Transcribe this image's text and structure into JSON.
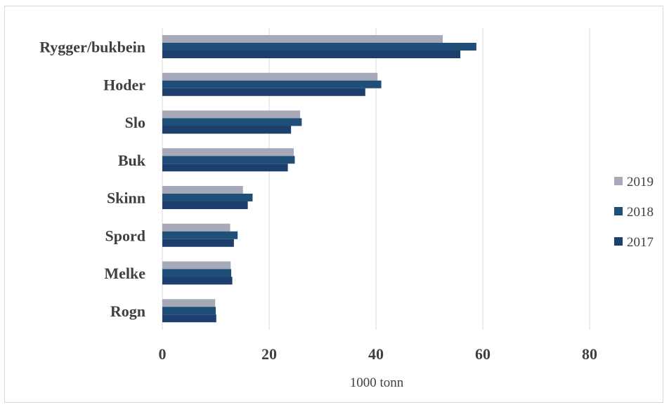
{
  "chart_data": {
    "type": "bar",
    "orientation": "horizontal",
    "categories": [
      "Rygger/bukbein",
      "Hoder",
      "Slo",
      "Buk",
      "Skinn",
      "Spord",
      "Melke",
      "Rogn"
    ],
    "series": [
      {
        "name": "2019",
        "color": "#a5a9b8",
        "values": [
          52.5,
          40.3,
          25.8,
          24.6,
          15.1,
          12.7,
          12.8,
          9.9
        ]
      },
      {
        "name": "2018",
        "color": "#1f4e79",
        "values": [
          58.8,
          41.0,
          26.1,
          24.8,
          16.9,
          14.1,
          12.9,
          10.0
        ]
      },
      {
        "name": "2017",
        "color": "#1c3f6e",
        "values": [
          55.8,
          38.0,
          24.1,
          23.5,
          16.0,
          13.4,
          13.1,
          10.1
        ]
      }
    ],
    "xlabel": "1000 tonn",
    "ylabel": "",
    "xlim": [
      0,
      80
    ],
    "xticks": [
      "0",
      "20",
      "40",
      "60",
      "80"
    ],
    "grid": true,
    "legend_position": "right"
  }
}
